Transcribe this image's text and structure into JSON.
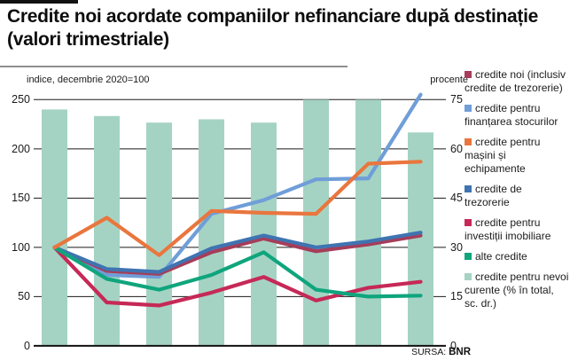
{
  "page": {
    "title": "Credite noi acordate companiilor nefinanciare după destinație (valori trimestriale)"
  },
  "chart": {
    "left_axis_label": "indice, decembrie 2020=100",
    "right_axis_label": "procente",
    "left_ticks": [
      "250",
      "200",
      "150",
      "100",
      "50",
      "0"
    ],
    "right_ticks": [
      "75",
      "60",
      "45",
      "30",
      "15",
      "0"
    ],
    "source_prefix": "SURSA:",
    "source_name": "BNR"
  },
  "legend": {
    "items": [
      {
        "label": "credite noi (inclusiv credite de trezorerie)",
        "color": "#a63d5a"
      },
      {
        "label": "credite pentru finanțarea stocurilor",
        "color": "#6f9ed8"
      },
      {
        "label": "credite pentru mașini și echipamente",
        "color": "#e9763e"
      },
      {
        "label": "credite de trezorerie",
        "color": "#3f74b2"
      },
      {
        "label": "credite pentru investiții imobiliare",
        "color": "#c62957"
      },
      {
        "label": "alte credite",
        "color": "#0fa57d"
      },
      {
        "label": "credite pentru nevoi curente (% în total, sc. dr.)",
        "color": "#a5d3c3"
      }
    ]
  },
  "chart_data": {
    "type": "combo bar+line, quarterly, no x-axis labels shown",
    "title": "Credite noi acordate companiilor nefinanciare după destinație (valori trimestriale)",
    "x_count": 8,
    "left_axis": {
      "label": "indice, decembrie 2020=100",
      "range": [
        0,
        250
      ],
      "tick_step": 50,
      "grid": true
    },
    "right_axis": {
      "label": "procente",
      "range": [
        0,
        75
      ],
      "tick_step": 15
    },
    "bar_series": {
      "name": "credite pentru nevoi curente (% în total, sc. dr.)",
      "axis": "right",
      "color": "#a5d3c3",
      "values": [
        72,
        70,
        68,
        69,
        68,
        75,
        75,
        65
      ]
    },
    "line_series": [
      {
        "name": "credite noi (inclusiv credite de trezorerie)",
        "axis": "left",
        "color": "#a63d5a",
        "values": [
          100,
          76,
          73,
          95,
          109,
          96,
          103,
          112
        ]
      },
      {
        "name": "credite pentru finanțarea stocurilor",
        "axis": "left",
        "color": "#6f9ed8",
        "values": [
          100,
          72,
          70,
          134,
          148,
          169,
          170,
          255
        ]
      },
      {
        "name": "credite pentru mașini și echipamente",
        "axis": "left",
        "color": "#e9763e",
        "values": [
          100,
          130,
          92,
          137,
          135,
          134,
          185,
          187
        ]
      },
      {
        "name": "credite de trezorerie",
        "axis": "left",
        "color": "#3f74b2",
        "values": [
          100,
          78,
          75,
          99,
          112,
          100,
          106,
          115
        ]
      },
      {
        "name": "credite pentru investiții imobiliare",
        "axis": "left",
        "color": "#c62957",
        "values": [
          100,
          44,
          41,
          54,
          70,
          46,
          59,
          65
        ]
      },
      {
        "name": "alte credite",
        "axis": "left",
        "color": "#0fa57d",
        "values": [
          100,
          68,
          57,
          72,
          95,
          57,
          50,
          51
        ]
      }
    ],
    "source": "SURSA: BNR",
    "legend_position": "right"
  }
}
